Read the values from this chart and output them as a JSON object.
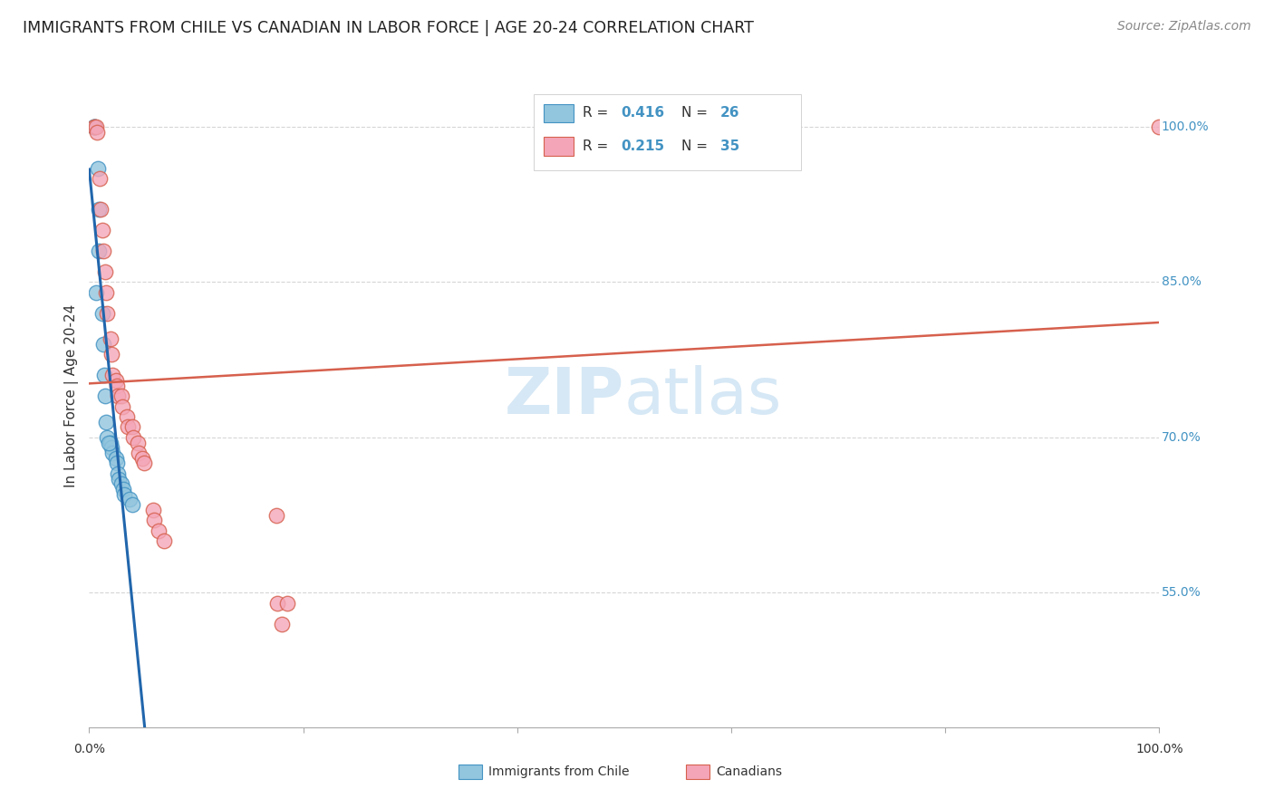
{
  "title": "IMMIGRANTS FROM CHILE VS CANADIAN IN LABOR FORCE | AGE 20-24 CORRELATION CHART",
  "source": "Source: ZipAtlas.com",
  "ylabel": "In Labor Force | Age 20-24",
  "xlim": [
    0.0,
    1.0
  ],
  "ylim": [
    0.42,
    1.06
  ],
  "ytick_positions": [
    0.55,
    0.7,
    0.85,
    1.0
  ],
  "ytick_labels": [
    "55.0%",
    "70.0%",
    "85.0%",
    "100.0%"
  ],
  "chile_color": "#92c5de",
  "chile_edge": "#4393c3",
  "canada_color": "#f4a6b8",
  "canada_edge": "#d6604d",
  "trend_chile_color": "#2166ac",
  "trend_canada_color": "#d6604d",
  "legend_R_chile": "R = 0.416",
  "legend_N_chile": "N = 26",
  "legend_R_canada": "R = 0.215",
  "legend_N_canada": "N = 35",
  "chile_x": [
    0.005,
    0.005,
    0.005,
    0.008,
    0.009,
    0.009,
    0.012,
    0.013,
    0.014,
    0.015,
    0.016,
    0.017,
    0.02,
    0.021,
    0.022,
    0.025,
    0.026,
    0.027,
    0.028,
    0.03,
    0.032,
    0.033,
    0.038,
    0.04,
    0.006,
    0.018
  ],
  "chile_y": [
    1.0,
    1.0,
    1.0,
    0.96,
    0.92,
    0.88,
    0.82,
    0.79,
    0.76,
    0.74,
    0.715,
    0.7,
    0.695,
    0.69,
    0.685,
    0.68,
    0.675,
    0.665,
    0.66,
    0.655,
    0.65,
    0.645,
    0.64,
    0.635,
    0.84,
    0.695
  ],
  "canada_x": [
    0.005,
    0.006,
    0.007,
    0.01,
    0.011,
    0.012,
    0.013,
    0.015,
    0.016,
    0.017,
    0.02,
    0.021,
    0.022,
    0.025,
    0.026,
    0.027,
    0.03,
    0.031,
    0.035,
    0.036,
    0.04,
    0.041,
    0.045,
    0.046,
    0.05,
    0.051,
    0.06,
    0.061,
    0.065,
    0.07,
    0.175,
    0.176,
    0.18,
    0.185,
    1.0
  ],
  "canada_y": [
    1.0,
    1.0,
    0.995,
    0.95,
    0.92,
    0.9,
    0.88,
    0.86,
    0.84,
    0.82,
    0.795,
    0.78,
    0.76,
    0.755,
    0.75,
    0.74,
    0.74,
    0.73,
    0.72,
    0.71,
    0.71,
    0.7,
    0.695,
    0.685,
    0.68,
    0.675,
    0.63,
    0.62,
    0.61,
    0.6,
    0.625,
    0.54,
    0.52,
    0.54,
    1.0
  ],
  "background_color": "#ffffff",
  "grid_color": "#cccccc",
  "watermark_color": "#d6e8f5"
}
